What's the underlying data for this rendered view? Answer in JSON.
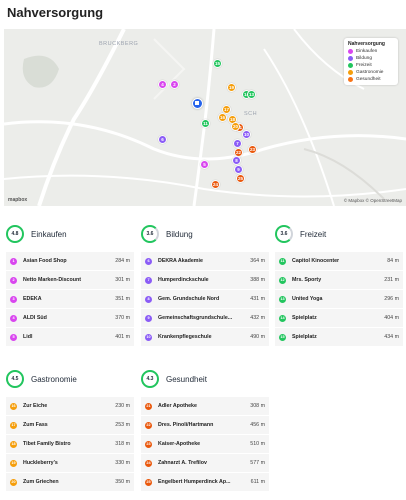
{
  "page": {
    "title": "Nahversorgung"
  },
  "map": {
    "labels": [
      "BRUCKBERG",
      "SCH"
    ],
    "legend_title": "Nahversorgung",
    "legend": [
      {
        "label": "Einkaufen",
        "color": "#d946ef"
      },
      {
        "label": "Bildung",
        "color": "#8b5cf6"
      },
      {
        "label": "Freizeit",
        "color": "#22c55e"
      },
      {
        "label": "Gastronomie",
        "color": "#f59e0b"
      },
      {
        "label": "Gesundheit",
        "color": "#f97316"
      }
    ],
    "logo": "mapbox",
    "attribution": "© Mapbox © OpenStreetMap"
  },
  "categories": [
    {
      "title": "Einkaufen",
      "score": "4.8",
      "color": "#d946ef",
      "items": [
        {
          "n": "1",
          "name": "Asian Food Shop",
          "dist": "284 m"
        },
        {
          "n": "2",
          "name": "Netto Marken-Discount",
          "dist": "301 m"
        },
        {
          "n": "3",
          "name": "EDEKA",
          "dist": "351 m"
        },
        {
          "n": "4",
          "name": "ALDI Süd",
          "dist": "370 m"
        },
        {
          "n": "5",
          "name": "Lidl",
          "dist": "401 m"
        }
      ]
    },
    {
      "title": "Bildung",
      "score": "3.6",
      "color": "#8b5cf6",
      "items": [
        {
          "n": "6",
          "name": "DEKRA Akademie",
          "dist": "364 m"
        },
        {
          "n": "7",
          "name": "Humperdinckschule",
          "dist": "388 m"
        },
        {
          "n": "8",
          "name": "Gem. Grundschule Nord",
          "dist": "431 m"
        },
        {
          "n": "9",
          "name": "Gemeinschaftsgrundschule...",
          "dist": "432 m"
        },
        {
          "n": "10",
          "name": "Krankenpflegeschule",
          "dist": "490 m"
        }
      ]
    },
    {
      "title": "Freizeit",
      "score": "3.6",
      "color": "#22c55e",
      "items": [
        {
          "n": "11",
          "name": "Capitol Kinocenter",
          "dist": "84 m"
        },
        {
          "n": "12",
          "name": "Mrs. Sporty",
          "dist": "231 m"
        },
        {
          "n": "13",
          "name": "United Yoga",
          "dist": "296 m"
        },
        {
          "n": "14",
          "name": "Spielplatz",
          "dist": "404 m"
        },
        {
          "n": "15",
          "name": "Spielplatz",
          "dist": "434 m"
        }
      ]
    },
    {
      "title": "Gastronomie",
      "score": "4.5",
      "color": "#f59e0b",
      "items": [
        {
          "n": "16",
          "name": "Zur Eiche",
          "dist": "230 m"
        },
        {
          "n": "17",
          "name": "Zum Fass",
          "dist": "253 m"
        },
        {
          "n": "18",
          "name": "Tibet Family Bistro",
          "dist": "318 m"
        },
        {
          "n": "19",
          "name": "Huckleberry's",
          "dist": "330 m"
        },
        {
          "n": "20",
          "name": "Zum Griechen",
          "dist": "350 m"
        }
      ]
    },
    {
      "title": "Gesundheit",
      "score": "4.3",
      "color": "#ea580c",
      "items": [
        {
          "n": "21",
          "name": "Adler Apotheke",
          "dist": "308 m"
        },
        {
          "n": "22",
          "name": "Dres. Pinoli/Hartmann",
          "dist": "456 m"
        },
        {
          "n": "23",
          "name": "Kaiser-Apotheke",
          "dist": "510 m"
        },
        {
          "n": "24",
          "name": "Zahnarzt A. Trefilov",
          "dist": "577 m"
        },
        {
          "n": "25",
          "name": "Engelbert Humperdinck Ap...",
          "dist": "611 m"
        }
      ]
    }
  ]
}
